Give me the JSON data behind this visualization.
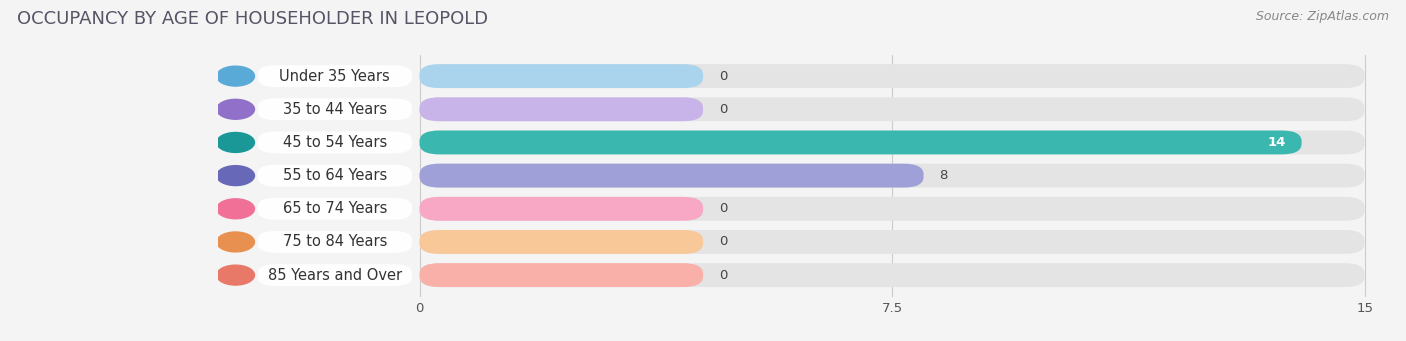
{
  "title": "OCCUPANCY BY AGE OF HOUSEHOLDER IN LEOPOLD",
  "source": "Source: ZipAtlas.com",
  "categories": [
    "Under 35 Years",
    "35 to 44 Years",
    "45 to 54 Years",
    "55 to 64 Years",
    "65 to 74 Years",
    "75 to 84 Years",
    "85 Years and Over"
  ],
  "values": [
    0,
    0,
    14,
    8,
    0,
    0,
    0
  ],
  "bar_colors": [
    "#aad4ee",
    "#c8b4e8",
    "#3ab8b0",
    "#a0a0d8",
    "#f8a8c4",
    "#f8c898",
    "#f8b0a8"
  ],
  "icon_colors": [
    "#5aaad8",
    "#9070c8",
    "#1a9898",
    "#6868b8",
    "#f07098",
    "#e89050",
    "#e87868"
  ],
  "background_color": "#f4f4f4",
  "bar_bg_color": "#e4e4e4",
  "label_bg_color": "#ffffff",
  "xlim_data": [
    0,
    15
  ],
  "xticks": [
    0,
    7.5,
    15
  ],
  "title_fontsize": 13,
  "label_fontsize": 10.5,
  "value_fontsize": 9.5,
  "source_fontsize": 9
}
